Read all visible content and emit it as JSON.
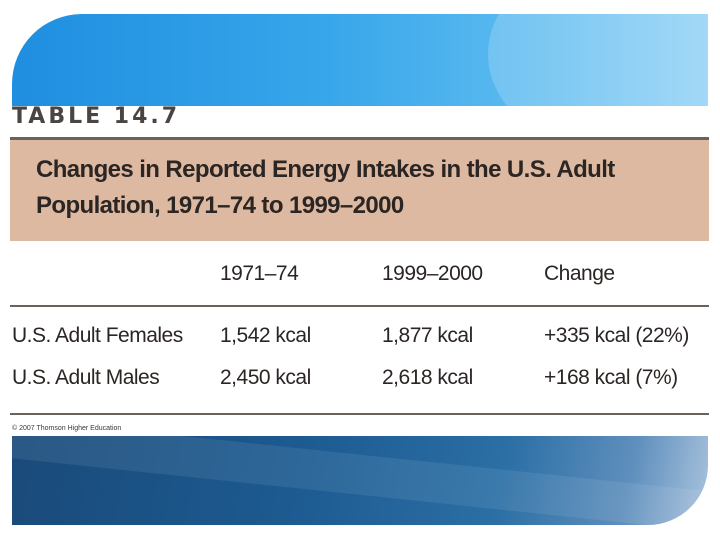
{
  "table_label": "TABLE 14.7",
  "title": "Changes in Reported Energy Intakes in the U.S. Adult Population, 1971–74 to 1999–2000",
  "columns": [
    "1971–74",
    "1999–2000",
    "Change"
  ],
  "rows": [
    {
      "label": "U.S. Adult Females",
      "v1": "1,542 kcal",
      "v2": "1,877 kcal",
      "change": "+335 kcal (22%)"
    },
    {
      "label": "U.S. Adult Males",
      "v1": "2,450 kcal",
      "v2": "2,618 kcal",
      "change": "+168 kcal (7%)"
    }
  ],
  "credit": "© 2007 Thomson Higher Education",
  "colors": {
    "top_banner": "#37a6ea",
    "title_band": "#ddb9a1",
    "bottom_banner": "#1c5a90",
    "rule": "#6b625b"
  }
}
